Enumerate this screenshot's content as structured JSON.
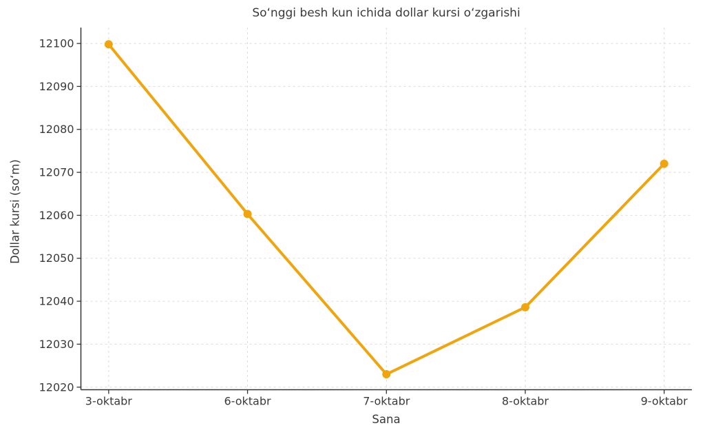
{
  "figure": {
    "background": "#ffffff"
  },
  "chart_data": {
    "type": "line",
    "title": "So‘nggi besh kun ichida dollar kursi o‘zgarishi",
    "xlabel": "Sana",
    "ylabel": "Dollar kursi (so‘m)",
    "categories": [
      "3-oktabr",
      "6-oktabr",
      "7-oktabr",
      "8-oktabr",
      "9-oktabr"
    ],
    "series": [
      {
        "name": "Dollar kursi",
        "values": [
          12099.8,
          12060.3,
          12023.0,
          12038.6,
          12072.0
        ]
      }
    ],
    "yticks": [
      12020,
      12030,
      12040,
      12050,
      12060,
      12070,
      12080,
      12090,
      12100
    ],
    "ylim": [
      12019.4,
      12103.7
    ],
    "grid": true,
    "grid_style": "dashed",
    "legend": false,
    "marker": "circle",
    "colors": {
      "line": "#EFA50F",
      "marker": "#EFA50F",
      "grid": "#DBDBDB",
      "spine": "#333333",
      "text": "#3a3a3a"
    }
  }
}
